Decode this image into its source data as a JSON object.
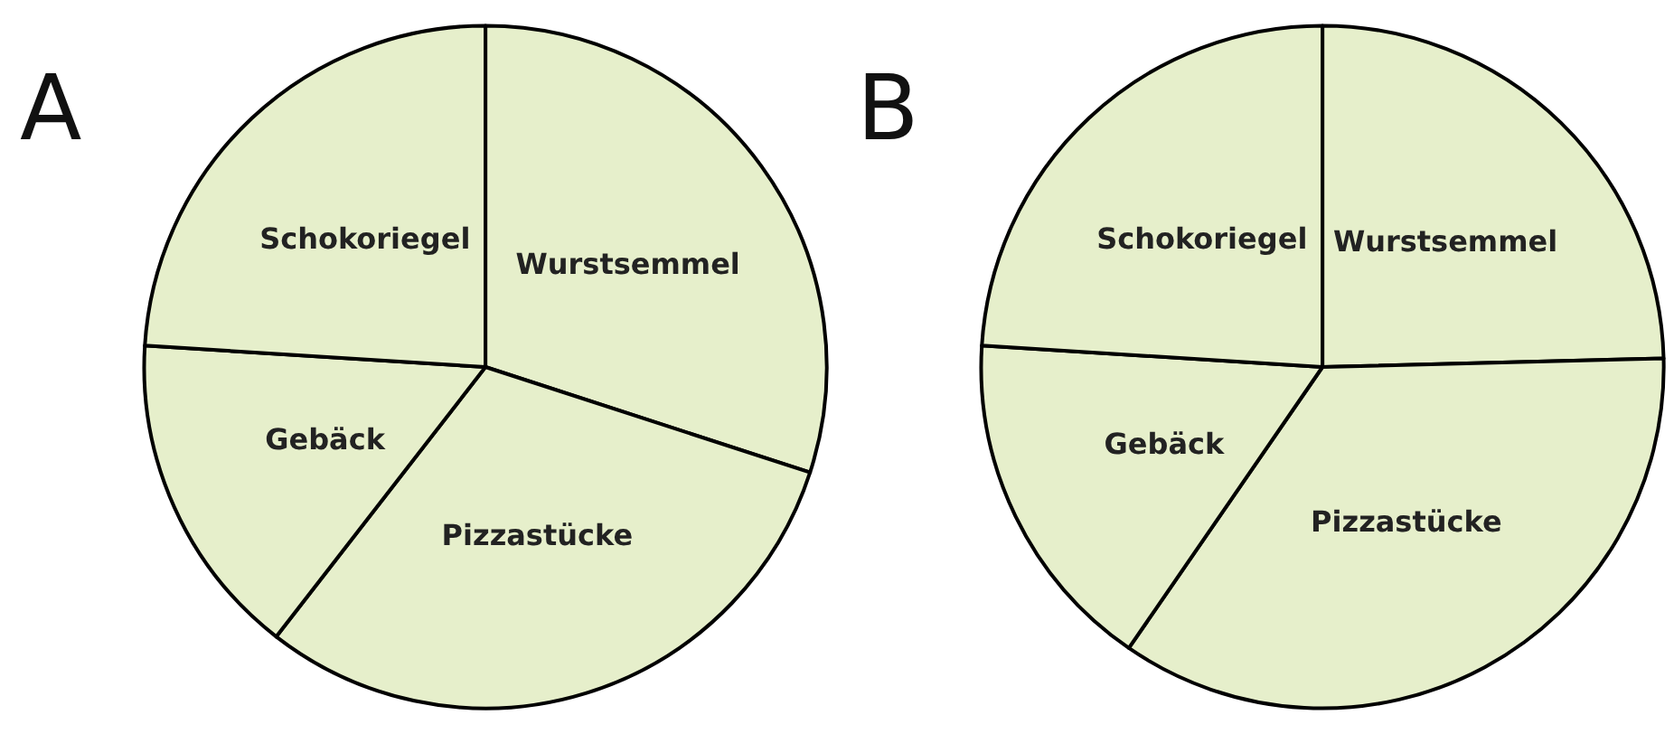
{
  "chart_data": [
    {
      "type": "pie",
      "title": "A",
      "categories": [
        "Wurstsemmel",
        "Pizzastücke",
        "Gebäck",
        "Schokoriegel"
      ],
      "values": [
        30,
        30.5,
        15.5,
        24
      ],
      "colors": [
        "#e6efcb",
        "#e6efcb",
        "#e6efcb",
        "#e6efcb"
      ]
    },
    {
      "type": "pie",
      "title": "B",
      "categories": [
        "Wurstsemmel",
        "Pizzastücke",
        "Gebäck",
        "Schokoriegel"
      ],
      "values": [
        24.6,
        35,
        16.4,
        24
      ],
      "colors": [
        "#e6efcb",
        "#e6efcb",
        "#e6efcb",
        "#e6efcb"
      ]
    }
  ]
}
